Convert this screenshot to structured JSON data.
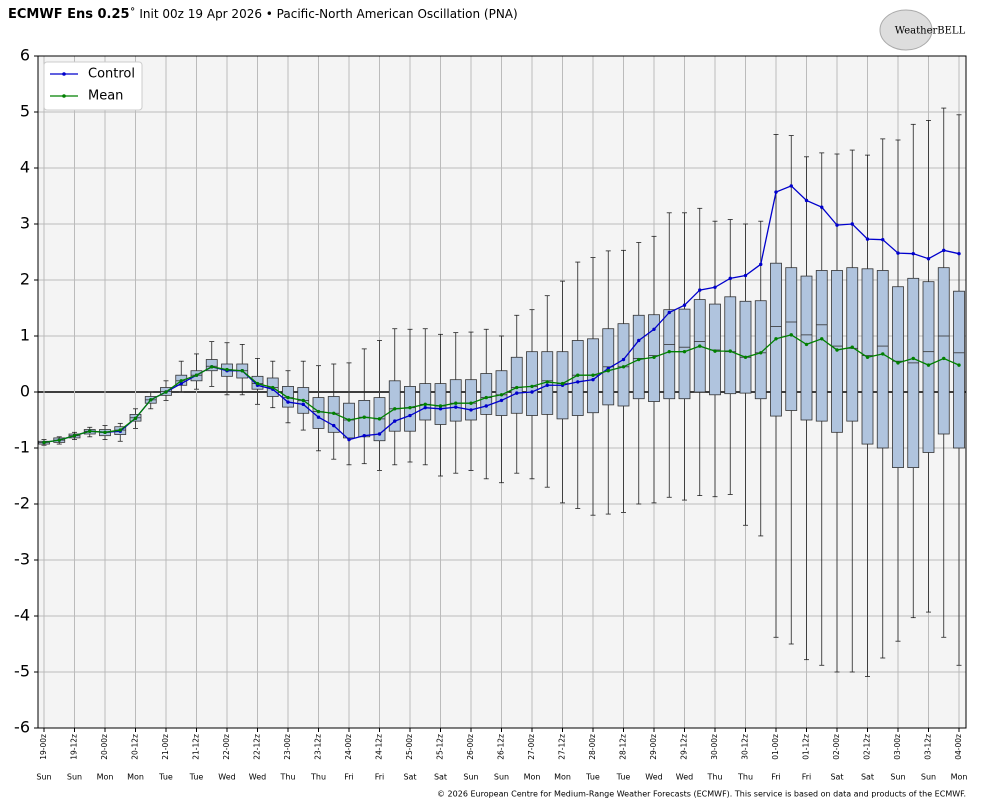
{
  "chart_data": {
    "type": "box",
    "title_bold": "ECMWF Ens 0.25",
    "title_rest": "˚ Init 00z 19 Apr 2026 • Pacific-North American Oscillation (PNA)",
    "logo": "WeatherBELL",
    "footer": "© 2026 European Centre for Medium-Range Weather Forecasts (ECMWF). This service is based on data and products of the ECMWF.",
    "categories": [
      "19-00z",
      null,
      "19-12z",
      null,
      "20-00z",
      null,
      "20-12z",
      null,
      "21-00z",
      null,
      "21-12z",
      null,
      "22-00z",
      null,
      "22-12z",
      null,
      "23-00z",
      null,
      "23-12z",
      null,
      "24-00z",
      null,
      "24-12z",
      null,
      "25-00z",
      null,
      "25-12z",
      null,
      "26-00z",
      null,
      "26-12z",
      null,
      "27-00z",
      null,
      "27-12z",
      null,
      "28-00z",
      null,
      "28-12z",
      null,
      "29-00z",
      null,
      "29-12z",
      null,
      "30-00z",
      null,
      "30-12z",
      null,
      "01-00z",
      null,
      "01-12z",
      null,
      "02-00z",
      null,
      "02-12z",
      null,
      "03-00z",
      null,
      "03-12z",
      null,
      "04-00z"
    ],
    "day_labels": [
      "Sun",
      null,
      "Sun",
      null,
      "Mon",
      null,
      "Mon",
      null,
      "Tue",
      null,
      "Tue",
      null,
      "Wed",
      null,
      "Wed",
      null,
      "Thu",
      null,
      "Thu",
      null,
      "Fri",
      null,
      "Fri",
      null,
      "Sat",
      null,
      "Sat",
      null,
      "Sun",
      null,
      "Sun",
      null,
      "Mon",
      null,
      "Mon",
      null,
      "Tue",
      null,
      "Tue",
      null,
      "Wed",
      null,
      "Wed",
      null,
      "Thu",
      null,
      "Thu",
      null,
      "Fri",
      null,
      "Fri",
      null,
      "Sat",
      null,
      "Sat",
      null,
      "Sun",
      null,
      "Sun",
      null,
      "Mon"
    ],
    "box_color": "#b0c4de",
    "boxes": {
      "whislo": [
        -0.95,
        -0.93,
        -0.85,
        -0.8,
        -0.85,
        -0.88,
        -0.65,
        -0.3,
        -0.15,
        0.0,
        0.05,
        0.1,
        -0.05,
        -0.05,
        -0.22,
        -0.28,
        -0.55,
        -0.68,
        -1.05,
        -1.2,
        -1.3,
        -1.28,
        -1.4,
        -1.3,
        -1.25,
        -1.3,
        -1.5,
        -1.45,
        -1.4,
        -1.55,
        -1.62,
        -1.45,
        -1.55,
        -1.7,
        -1.98,
        -2.08,
        -2.2,
        -2.18,
        -2.15,
        -2.0,
        -1.98,
        -1.88,
        -1.93,
        -1.85,
        -1.87,
        -1.83,
        -2.38,
        -2.57,
        -4.38,
        -4.5,
        -4.78,
        -4.88,
        -5.0,
        -5.0,
        -5.08,
        -4.75,
        -4.45,
        -4.03,
        -3.93,
        -4.38,
        -4.88
      ],
      "q1": [
        -0.93,
        -0.9,
        -0.82,
        -0.75,
        -0.78,
        -0.76,
        -0.52,
        -0.2,
        -0.06,
        0.12,
        0.2,
        0.38,
        0.28,
        0.25,
        0.05,
        -0.08,
        -0.27,
        -0.38,
        -0.65,
        -0.72,
        -0.82,
        -0.8,
        -0.87,
        -0.7,
        -0.7,
        -0.5,
        -0.58,
        -0.52,
        -0.5,
        -0.4,
        -0.42,
        -0.38,
        -0.42,
        -0.4,
        -0.48,
        -0.42,
        -0.37,
        -0.23,
        -0.25,
        -0.12,
        -0.17,
        -0.12,
        -0.12,
        0.0,
        -0.05,
        -0.03,
        -0.02,
        -0.12,
        -0.43,
        -0.33,
        -0.5,
        -0.52,
        -0.72,
        -0.52,
        -0.93,
        -1.0,
        -1.35,
        -1.35,
        -1.08,
        -0.75,
        -1.0
      ],
      "med": [
        -0.9,
        -0.86,
        -0.78,
        -0.7,
        -0.72,
        -0.68,
        -0.46,
        -0.14,
        0.01,
        0.2,
        0.3,
        0.46,
        0.4,
        0.38,
        0.15,
        0.08,
        -0.1,
        -0.15,
        -0.35,
        -0.38,
        -0.5,
        -0.45,
        -0.48,
        -0.3,
        -0.28,
        -0.22,
        -0.25,
        -0.2,
        -0.2,
        -0.1,
        -0.05,
        0.08,
        0.1,
        0.2,
        0.15,
        0.3,
        0.3,
        0.45,
        0.45,
        0.6,
        0.65,
        0.85,
        0.8,
        0.9,
        0.75,
        0.72,
        0.62,
        0.7,
        1.17,
        1.25,
        1.02,
        1.2,
        0.82,
        0.78,
        0.65,
        0.82,
        0.55,
        0.52,
        0.72,
        1.0,
        0.7
      ],
      "q3": [
        -0.88,
        -0.82,
        -0.75,
        -0.67,
        -0.67,
        -0.62,
        -0.4,
        -0.08,
        0.08,
        0.3,
        0.38,
        0.58,
        0.5,
        0.5,
        0.28,
        0.25,
        0.1,
        0.08,
        -0.1,
        -0.08,
        -0.2,
        -0.15,
        -0.1,
        0.2,
        0.1,
        0.15,
        0.15,
        0.22,
        0.22,
        0.33,
        0.38,
        0.62,
        0.72,
        0.72,
        0.72,
        0.92,
        0.95,
        1.13,
        1.22,
        1.37,
        1.38,
        1.47,
        1.48,
        1.65,
        1.57,
        1.7,
        1.62,
        1.63,
        2.3,
        2.22,
        2.07,
        2.17,
        2.17,
        2.22,
        2.2,
        2.17,
        1.88,
        2.03,
        1.97,
        2.22,
        1.8
      ],
      "whishi": [
        -0.85,
        -0.8,
        -0.72,
        -0.63,
        -0.6,
        -0.56,
        -0.3,
        0.0,
        0.2,
        0.55,
        0.68,
        0.9,
        0.88,
        0.85,
        0.6,
        0.55,
        0.38,
        0.55,
        0.47,
        0.5,
        0.52,
        0.77,
        0.92,
        1.13,
        1.12,
        1.13,
        1.03,
        1.06,
        1.07,
        1.12,
        1.0,
        1.37,
        1.47,
        1.72,
        1.98,
        2.32,
        2.4,
        2.52,
        2.53,
        2.67,
        2.78,
        3.2,
        3.2,
        3.28,
        3.05,
        3.08,
        3.0,
        3.05,
        4.6,
        4.58,
        4.2,
        4.27,
        4.25,
        4.32,
        4.23,
        4.52,
        4.5,
        4.78,
        4.85,
        5.07,
        4.95
      ]
    },
    "series": [
      {
        "name": "Control",
        "color": "#0000cc",
        "values": [
          -0.9,
          -0.86,
          -0.78,
          -0.7,
          -0.72,
          -0.7,
          -0.47,
          -0.14,
          0.0,
          0.15,
          0.3,
          0.45,
          0.38,
          0.38,
          0.12,
          0.05,
          -0.18,
          -0.22,
          -0.45,
          -0.6,
          -0.85,
          -0.78,
          -0.75,
          -0.52,
          -0.42,
          -0.28,
          -0.3,
          -0.27,
          -0.32,
          -0.25,
          -0.15,
          -0.02,
          0.0,
          0.12,
          0.12,
          0.18,
          0.22,
          0.42,
          0.58,
          0.92,
          1.12,
          1.42,
          1.55,
          1.82,
          1.87,
          2.03,
          2.08,
          2.28,
          3.57,
          3.68,
          3.42,
          3.3,
          2.98,
          3.0,
          2.73,
          2.72,
          2.48,
          2.47,
          2.38,
          2.53,
          2.47
        ]
      },
      {
        "name": "Mean",
        "color": "#008000",
        "values": [
          -0.9,
          -0.86,
          -0.78,
          -0.7,
          -0.72,
          -0.68,
          -0.47,
          -0.14,
          0.0,
          0.2,
          0.3,
          0.45,
          0.4,
          0.38,
          0.15,
          0.08,
          -0.1,
          -0.15,
          -0.35,
          -0.38,
          -0.5,
          -0.45,
          -0.48,
          -0.3,
          -0.28,
          -0.22,
          -0.25,
          -0.2,
          -0.2,
          -0.1,
          -0.05,
          0.08,
          0.1,
          0.18,
          0.15,
          0.3,
          0.3,
          0.38,
          0.45,
          0.58,
          0.62,
          0.72,
          0.72,
          0.82,
          0.73,
          0.73,
          0.62,
          0.7,
          0.95,
          1.02,
          0.85,
          0.95,
          0.75,
          0.8,
          0.62,
          0.68,
          0.52,
          0.6,
          0.48,
          0.6,
          0.48
        ]
      }
    ],
    "ylim": [
      -6,
      6
    ],
    "yticks": [
      6,
      5,
      4,
      3,
      2,
      1,
      0,
      -1,
      -2,
      -3,
      -4,
      -5,
      -6
    ],
    "grid": true,
    "legend": "upper left"
  }
}
